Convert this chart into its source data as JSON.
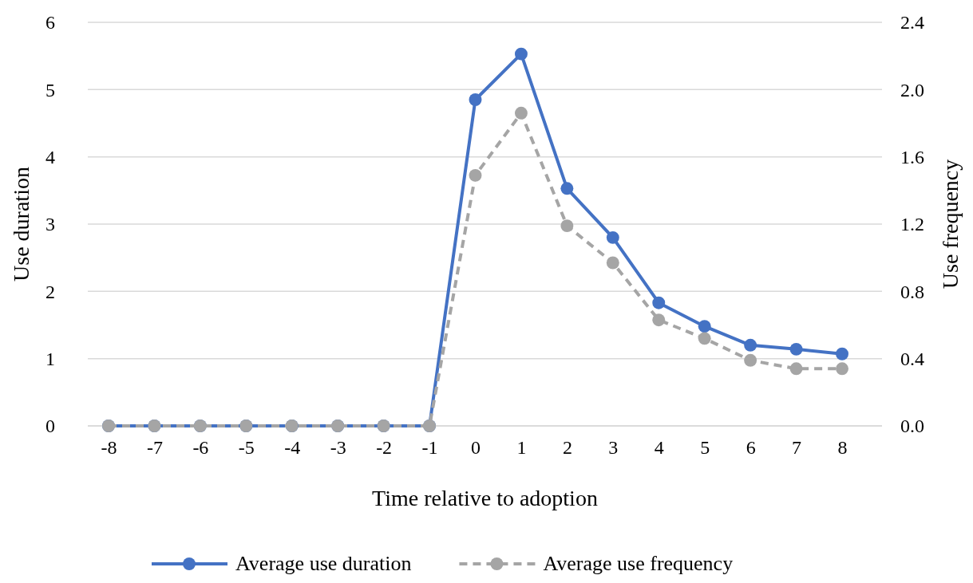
{
  "chart_data": {
    "type": "line",
    "xlabel": "Time relative to adoption",
    "ylabel": "Use duration",
    "y2label": "Use frequency",
    "categories": [
      "-8",
      "-7",
      "-6",
      "-5",
      "-4",
      "-3",
      "-2",
      "-1",
      "0",
      "1",
      "2",
      "3",
      "4",
      "5",
      "6",
      "7",
      "8"
    ],
    "series": [
      {
        "name": "Average use duration",
        "color": "#4472c4",
        "line_style": "solid",
        "values": [
          0,
          0,
          0,
          0,
          0,
          0,
          0,
          0,
          4.85,
          5.53,
          3.53,
          2.8,
          1.83,
          1.48,
          1.2,
          1.14,
          1.07
        ]
      },
      {
        "name": "Average use frequency",
        "color": "#a5a5a5",
        "line_style": "dashed",
        "axis": "y2",
        "values": [
          0,
          0,
          0,
          0,
          0,
          0,
          0,
          0,
          1.49,
          1.86,
          1.19,
          0.97,
          0.63,
          0.52,
          0.39,
          0.34,
          0.34
        ]
      }
    ],
    "ylim": [
      0,
      6
    ],
    "yticks": [
      0,
      1,
      2,
      3,
      4,
      5,
      6
    ],
    "y2lim": [
      0,
      2.4
    ],
    "y2ticks": [
      {
        "value": 0,
        "label": "0.0"
      },
      {
        "value": 0.4,
        "label": "0.4"
      },
      {
        "value": 0.8,
        "label": "0.8"
      },
      {
        "value": 1.2,
        "label": "1.2"
      },
      {
        "value": 1.6,
        "label": "1.6"
      },
      {
        "value": 2.0,
        "label": "2.0"
      },
      {
        "value": 2.4,
        "label": "2.4"
      }
    ],
    "grid": "y",
    "legend": "bottom",
    "marker": "circle"
  }
}
